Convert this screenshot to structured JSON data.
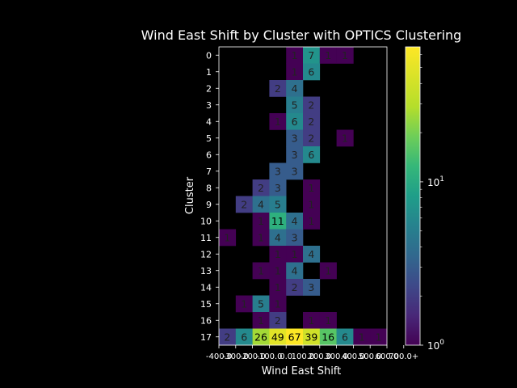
{
  "chart_data": {
    "type": "heatmap",
    "title": "Wind East Shift by Cluster with OPTICS Clustering",
    "xlabel": "Wind East Shift",
    "ylabel": "Cluster",
    "x_ticks": [
      "-400.0",
      "-300.0",
      "-200.0",
      "-100.0",
      "0.0",
      "100.0",
      "200.0",
      "300.0",
      "400.0",
      "500.0",
      "600.0",
      "700.0+"
    ],
    "y_ticks": [
      "0",
      "1",
      "2",
      "3",
      "4",
      "5",
      "6",
      "7",
      "8",
      "9",
      "10",
      "11",
      "12",
      "13",
      "14",
      "15",
      "16",
      "17"
    ],
    "color_scale": "log",
    "colormap": "viridis",
    "colorbar_range": [
      1,
      67
    ],
    "colorbar_ticks": [
      {
        "value": 1,
        "label": "10",
        "exp": "0"
      },
      {
        "value": 10,
        "label": "10",
        "exp": "1"
      }
    ],
    "cells": [
      {
        "row": 0,
        "col": 4,
        "value": 1
      },
      {
        "row": 0,
        "col": 5,
        "value": 7
      },
      {
        "row": 0,
        "col": 6,
        "value": 1
      },
      {
        "row": 0,
        "col": 7,
        "value": 1
      },
      {
        "row": 1,
        "col": 4,
        "value": 1
      },
      {
        "row": 1,
        "col": 5,
        "value": 6
      },
      {
        "row": 2,
        "col": 3,
        "value": 2
      },
      {
        "row": 2,
        "col": 4,
        "value": 4
      },
      {
        "row": 3,
        "col": 4,
        "value": 5
      },
      {
        "row": 3,
        "col": 5,
        "value": 2
      },
      {
        "row": 4,
        "col": 3,
        "value": 1
      },
      {
        "row": 4,
        "col": 4,
        "value": 6
      },
      {
        "row": 4,
        "col": 5,
        "value": 2
      },
      {
        "row": 5,
        "col": 4,
        "value": 3
      },
      {
        "row": 5,
        "col": 5,
        "value": 2
      },
      {
        "row": 5,
        "col": 7,
        "value": 1
      },
      {
        "row": 6,
        "col": 4,
        "value": 3
      },
      {
        "row": 6,
        "col": 5,
        "value": 6
      },
      {
        "row": 7,
        "col": 3,
        "value": 3
      },
      {
        "row": 7,
        "col": 4,
        "value": 3
      },
      {
        "row": 8,
        "col": 2,
        "value": 2
      },
      {
        "row": 8,
        "col": 3,
        "value": 3
      },
      {
        "row": 8,
        "col": 5,
        "value": 1
      },
      {
        "row": 9,
        "col": 1,
        "value": 2
      },
      {
        "row": 9,
        "col": 2,
        "value": 4
      },
      {
        "row": 9,
        "col": 3,
        "value": 5
      },
      {
        "row": 9,
        "col": 5,
        "value": 1
      },
      {
        "row": 10,
        "col": 2,
        "value": 1
      },
      {
        "row": 10,
        "col": 3,
        "value": 11
      },
      {
        "row": 10,
        "col": 4,
        "value": 4
      },
      {
        "row": 10,
        "col": 5,
        "value": 1
      },
      {
        "row": 11,
        "col": 0,
        "value": 1
      },
      {
        "row": 11,
        "col": 2,
        "value": 1
      },
      {
        "row": 11,
        "col": 3,
        "value": 4
      },
      {
        "row": 11,
        "col": 4,
        "value": 3
      },
      {
        "row": 12,
        "col": 3,
        "value": 1
      },
      {
        "row": 12,
        "col": 4,
        "value": 1
      },
      {
        "row": 12,
        "col": 5,
        "value": 4
      },
      {
        "row": 13,
        "col": 2,
        "value": 1
      },
      {
        "row": 13,
        "col": 3,
        "value": 1
      },
      {
        "row": 13,
        "col": 4,
        "value": 4
      },
      {
        "row": 13,
        "col": 6,
        "value": 1
      },
      {
        "row": 14,
        "col": 3,
        "value": 1
      },
      {
        "row": 14,
        "col": 4,
        "value": 2
      },
      {
        "row": 14,
        "col": 5,
        "value": 3
      },
      {
        "row": 15,
        "col": 1,
        "value": 1
      },
      {
        "row": 15,
        "col": 2,
        "value": 5
      },
      {
        "row": 15,
        "col": 3,
        "value": 1
      },
      {
        "row": 16,
        "col": 2,
        "value": 1
      },
      {
        "row": 16,
        "col": 3,
        "value": 2
      },
      {
        "row": 16,
        "col": 5,
        "value": 1
      },
      {
        "row": 16,
        "col": 6,
        "value": 1
      },
      {
        "row": 17,
        "col": 0,
        "value": 2
      },
      {
        "row": 17,
        "col": 1,
        "value": 6
      },
      {
        "row": 17,
        "col": 2,
        "value": 26
      },
      {
        "row": 17,
        "col": 3,
        "value": 49
      },
      {
        "row": 17,
        "col": 4,
        "value": 67
      },
      {
        "row": 17,
        "col": 5,
        "value": 39
      },
      {
        "row": 17,
        "col": 6,
        "value": 16
      },
      {
        "row": 17,
        "col": 7,
        "value": 6
      },
      {
        "row": 17,
        "col": 8,
        "value": 1
      },
      {
        "row": 17,
        "col": 9,
        "value": 1
      }
    ]
  }
}
